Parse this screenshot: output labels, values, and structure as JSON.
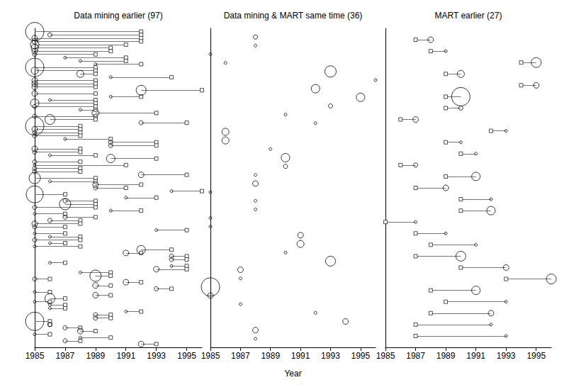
{
  "chart_data": [
    {
      "type": "dumbbell",
      "title": "Data mining earlier (97)",
      "xlim": [
        1985,
        1996
      ],
      "xticks": [
        1985,
        1987,
        1989,
        1991,
        1993,
        1995
      ],
      "tick_labels": "x",
      "color": "#000000",
      "series": [
        {
          "marker": "circle",
          "values": [
            1985,
            1986,
            1985,
            1985,
            1985,
            1985,
            1985,
            1985,
            1987,
            1988,
            1989,
            1985,
            1985,
            1988,
            1990,
            1985,
            1985,
            1985,
            1992,
            1985,
            1990,
            1986,
            1985,
            1985,
            1988,
            1989,
            1985,
            1986,
            1992,
            1985,
            1985,
            1985,
            1985,
            1987,
            1990,
            1990,
            1985,
            1985,
            1986,
            1990,
            1985,
            1985,
            1985,
            1985,
            1992,
            1985,
            1986,
            1989,
            1989,
            1994,
            1985,
            1991,
            1987,
            1987,
            1985,
            1990,
            1985,
            1987,
            1986,
            1985,
            1985,
            1993,
            1985,
            1986,
            1985,
            1986,
            1985,
            1992,
            1991,
            1994,
            1994,
            1986,
            1994,
            1993,
            1988,
            1989,
            1985,
            1991,
            1989,
            1993,
            1985,
            1989,
            1986,
            1985,
            1986,
            1986,
            1991,
            1989,
            1989,
            1985,
            1986,
            1987,
            1988,
            1985,
            1988,
            1987,
            1992
          ],
          "size": [
            12,
            2,
            3,
            3,
            5,
            4,
            3,
            2,
            1,
            1,
            1,
            12,
            4,
            4,
            1,
            3,
            3,
            3,
            6,
            3,
            1,
            1,
            5,
            2,
            1,
            4,
            2,
            6,
            2,
            12,
            3,
            2,
            2,
            1,
            2,
            2,
            3,
            2,
            1,
            5,
            2,
            1,
            2,
            2,
            3,
            7,
            1,
            3,
            2,
            1,
            11,
            1,
            2,
            7,
            2,
            1,
            1,
            2,
            2,
            3,
            2,
            1,
            1,
            1,
            2,
            1,
            1,
            5,
            3,
            2,
            2,
            1,
            1,
            3,
            1,
            7,
            2,
            3,
            3,
            2,
            1,
            3,
            6,
            1,
            1,
            1,
            1,
            2,
            2,
            12,
            2,
            2,
            3,
            1,
            1,
            2,
            3
          ]
        },
        {
          "marker": "square",
          "values": [
            1992,
            1992,
            1992,
            1992,
            1991,
            1990,
            1990,
            1989,
            1991,
            1991,
            1992,
            1989,
            1989,
            1989,
            1994,
            1989,
            1989,
            1989,
            1996,
            1989,
            1992,
            1989,
            1989,
            1989,
            1989,
            1993,
            1989,
            1989,
            1995,
            1988,
            1988,
            1988,
            1988,
            1990,
            1993,
            1993,
            1988,
            1988,
            1989,
            1993,
            1988,
            1991,
            1988,
            1988,
            1995,
            1989,
            1989,
            1992,
            1991,
            1996,
            1987,
            1993,
            1989,
            1989,
            1989,
            1992,
            1987,
            1989,
            1988,
            1988,
            1987,
            1995,
            1987,
            1988,
            1988,
            1987,
            1988,
            1994,
            1992,
            1995,
            1995,
            1987,
            1995,
            1995,
            1990,
            1990,
            1986,
            1992,
            1990,
            1994,
            1986,
            1990,
            1987,
            1986,
            1987,
            1987,
            1992,
            1990,
            1990,
            1986,
            1986,
            1988,
            1989,
            1986,
            1990,
            1988,
            1993
          ]
        }
      ]
    },
    {
      "type": "scatter",
      "title": "Data mining & MART same time (36)",
      "xlabel": "Year",
      "xlim": [
        1985,
        1996
      ],
      "xticks": [
        1985,
        1987,
        1989,
        1991,
        1993,
        1995
      ],
      "tick_labels": "x",
      "color": "#000000",
      "series": [
        {
          "marker": "circle",
          "values": [
            1988,
            1988,
            1985,
            1986,
            1993,
            1996,
            1992,
            1995,
            1993,
            1990,
            1992,
            1986,
            1986,
            1989,
            1990,
            1990,
            1988,
            1988,
            1985,
            1988,
            1988,
            1985,
            1985,
            1991,
            1991,
            1990,
            1993,
            1987,
            1987,
            1985,
            1985,
            1987,
            1992,
            1994,
            1988,
            1988
          ],
          "size": [
            2,
            1,
            1,
            1,
            7,
            1,
            5,
            5,
            2,
            1,
            1,
            4,
            4,
            1,
            5,
            2,
            1,
            3,
            1,
            1,
            1,
            1,
            1,
            3,
            4,
            1,
            6,
            3,
            1,
            12,
            3,
            1,
            1,
            3,
            3,
            1
          ]
        }
      ]
    },
    {
      "type": "dumbbell",
      "title": "MART earlier (27)",
      "xlim": [
        1985,
        1996
      ],
      "xticks": [
        1985,
        1987,
        1989,
        1991,
        1993,
        1995
      ],
      "tick_labels": "x",
      "color": "#000000",
      "series": [
        {
          "marker": "circle",
          "values": [
            1988,
            1989,
            1995,
            1990,
            1995,
            1990,
            1990,
            1987,
            1993,
            1990,
            1991,
            1987,
            1991,
            1989,
            1992,
            1992,
            1987,
            1989,
            1991,
            1990,
            1993,
            1996,
            1991,
            1993,
            1992,
            1992,
            1993
          ],
          "size": [
            3,
            1,
            6,
            4,
            3,
            12,
            2,
            3,
            1,
            1,
            1,
            2,
            5,
            3,
            1,
            5,
            1,
            1,
            1,
            6,
            3,
            6,
            5,
            1,
            3,
            1,
            1
          ]
        },
        {
          "marker": "square",
          "values": [
            1987,
            1988,
            1994,
            1989,
            1994,
            1989,
            1989,
            1986,
            1992,
            1989,
            1990,
            1986,
            1989,
            1987,
            1990,
            1990,
            1985,
            1987,
            1988,
            1987,
            1990,
            1993,
            1988,
            1989,
            1988,
            1987,
            1987
          ]
        }
      ]
    }
  ]
}
